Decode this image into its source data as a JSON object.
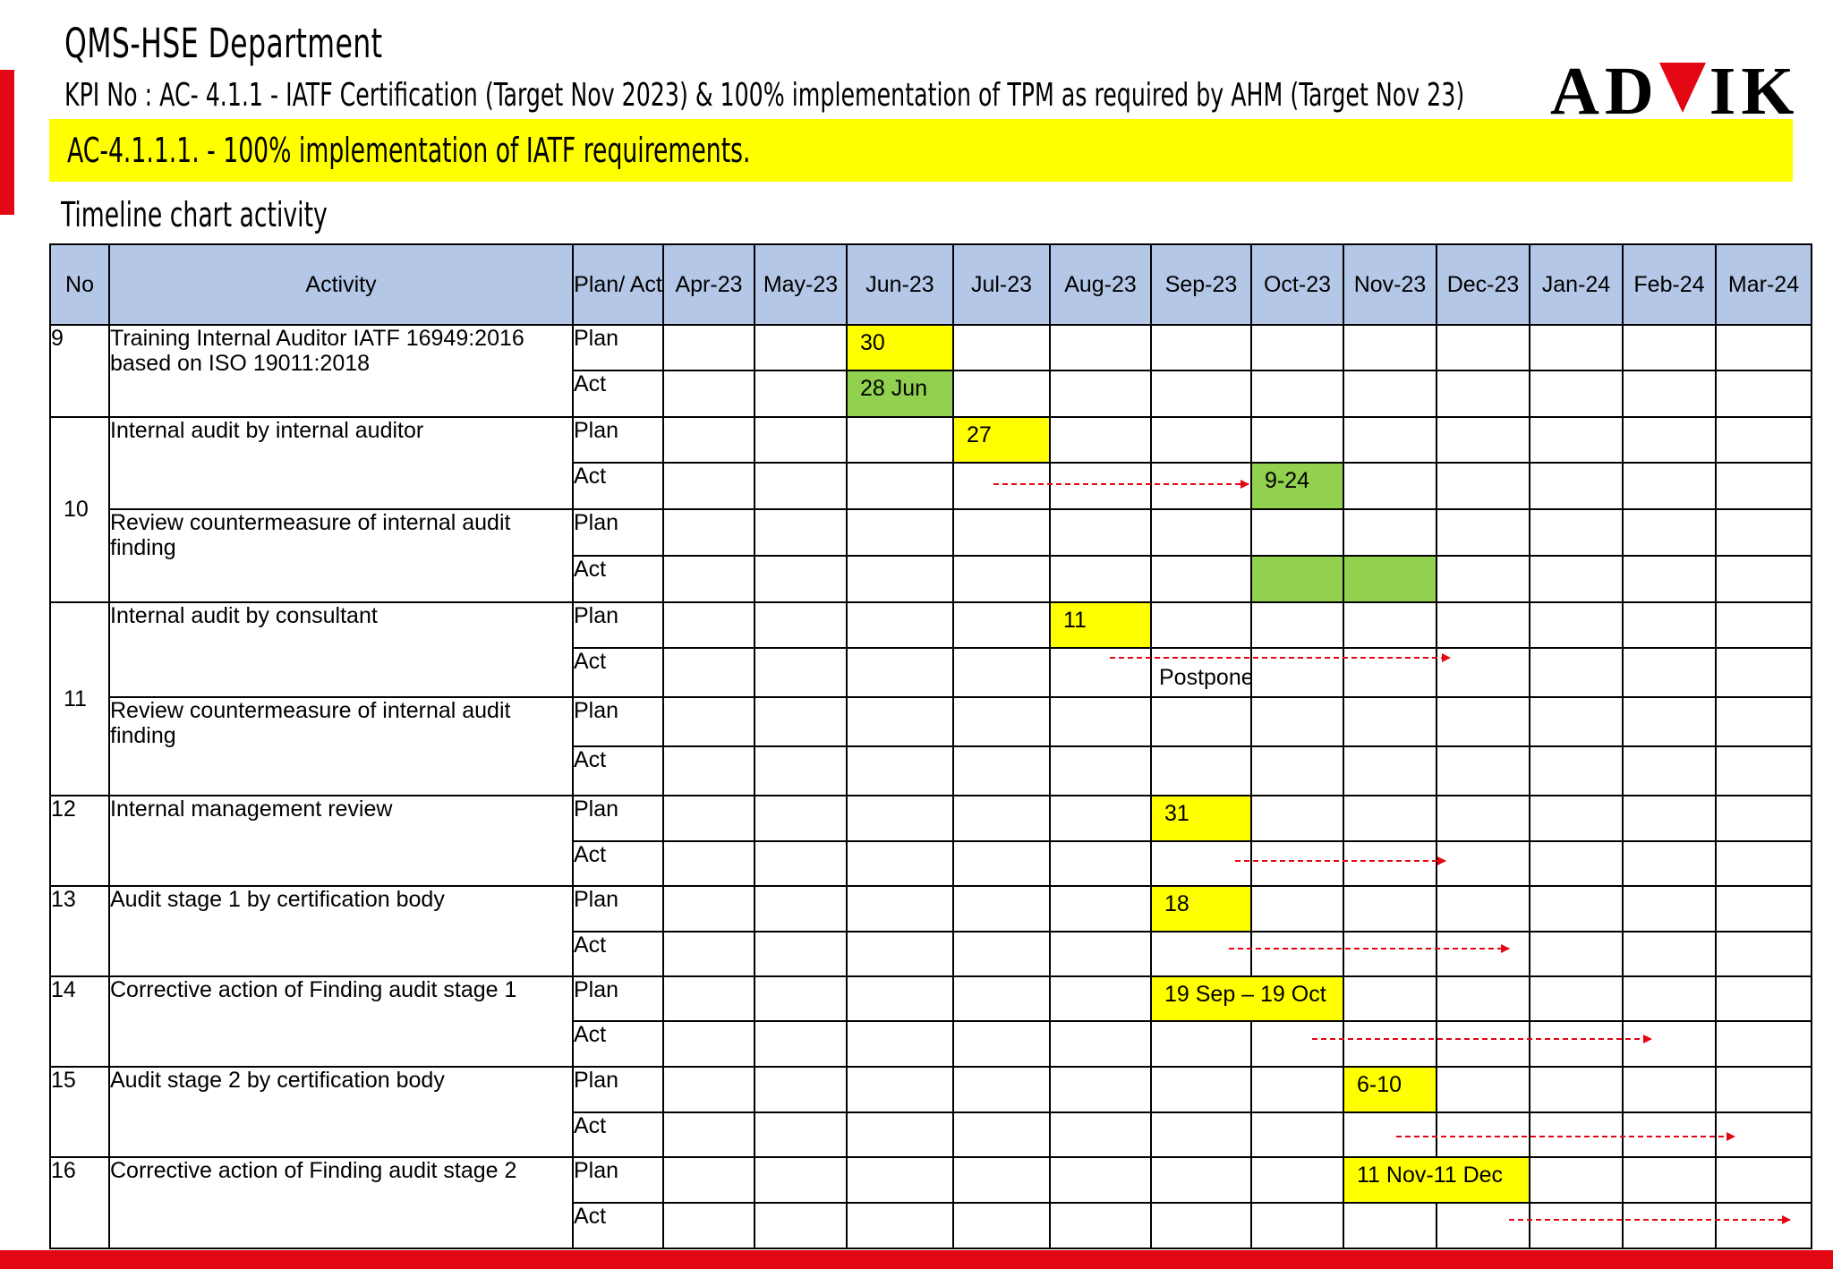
{
  "header": {
    "department": "QMS-HSE Department",
    "kpi": "KPI No : AC- 4.1.1 - IATF Certification  (Target Nov 2023) & 100% implementation of TPM as required by AHM (Target Nov 23)",
    "logo_left": "AD",
    "logo_right": "IK",
    "banner": "AC-4.1.1.1. - 100% implementation of IATF requirements.",
    "section_title": "Timeline chart activity"
  },
  "colors": {
    "highlight_plan": "#ffff00",
    "highlight_actual": "#92d050",
    "header_fill": "#b4c7e7",
    "accent_red": "#e30613"
  },
  "table": {
    "headers": {
      "no": "No",
      "activity": "Activity",
      "plan_act": "Plan/ Act",
      "months": [
        "Apr-23",
        "May-23",
        "Jun-23",
        "Jul-23",
        "Aug-23",
        "Sep-23",
        "Oct-23",
        "Nov-23",
        "Dec-23",
        "Jan-24",
        "Feb-24",
        "Mar-24"
      ]
    },
    "plan_label": "Plan",
    "act_label": "Act",
    "rows": [
      {
        "no": "9",
        "activity": "Training Internal Auditor  IATF 16949:2016 based on ISO 19011:2018",
        "plan": {
          "month": 2,
          "text": "30"
        },
        "act": {
          "month": 2,
          "text": "28 Jun"
        }
      },
      {
        "no": "10",
        "activity": "Internal audit by internal auditor",
        "plan": {
          "month": 3,
          "text": "27"
        },
        "act": {
          "month": 6,
          "text": "9-24"
        }
      },
      {
        "activity": "Review countermeasure of internal audit finding",
        "act_months": [
          6,
          7
        ]
      },
      {
        "no": "11",
        "activity": "Internal audit by consultant",
        "plan": {
          "month": 4,
          "text": "11"
        },
        "act_note": "Postpone (TBD)"
      },
      {
        "activity": "Review countermeasure of internal audit finding"
      },
      {
        "no": "12",
        "activity": "Internal management review",
        "plan": {
          "month": 5,
          "text": "31"
        }
      },
      {
        "no": "13",
        "activity": "Audit stage 1 by certification body",
        "plan": {
          "month": 5,
          "text": "18"
        }
      },
      {
        "no": "14",
        "activity": "Corrective action of Finding audit stage 1",
        "plan": {
          "month": 5,
          "span": 2,
          "text": "19 Sep – 19 Oct"
        }
      },
      {
        "no": "15",
        "activity": "Audit stage 2 by certification body",
        "plan": {
          "month": 7,
          "text": "6-10"
        }
      },
      {
        "no": "16",
        "activity": "Corrective action of Finding audit stage 2",
        "plan": {
          "month": 7,
          "span": 2,
          "text": "11 Nov-11 Dec"
        }
      }
    ]
  }
}
